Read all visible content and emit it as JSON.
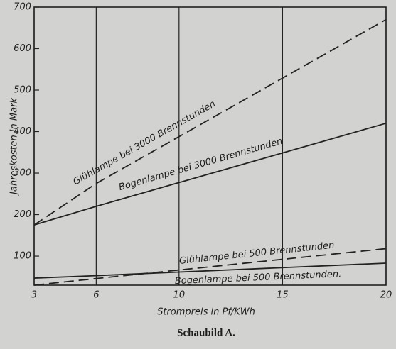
{
  "chart_data": {
    "type": "line",
    "caption": "Schaubild A.",
    "x_label": "Strompreis in Pf/KWh",
    "y_label": "Jahreskosten in Mark",
    "x": [
      3,
      6,
      20
    ],
    "series": [
      {
        "name": "Glühlampe bei 3000 Brennstunden",
        "color": "#222222",
        "dashed": true,
        "values": [
          175,
          275,
          670
        ]
      },
      {
        "name": "Bogenlampe bei 3000 Brennstunden",
        "color": "#222222",
        "dashed": false,
        "values": [
          175,
          220,
          420
        ]
      },
      {
        "name": "Glühlampe bei 500 Brennstunden",
        "color": "#222222",
        "dashed": true,
        "values": [
          30,
          46,
          118
        ]
      },
      {
        "name": "Bogenlampe bei 500 Brennstunden.",
        "color": "#222222",
        "dashed": false,
        "values": [
          47,
          53,
          83
        ]
      }
    ],
    "xlim": [
      3,
      20
    ],
    "xticks": [
      3,
      6,
      10,
      15,
      20
    ],
    "ylim": [
      30,
      700
    ],
    "yticks": [
      100,
      200,
      300,
      400,
      500,
      600,
      700
    ],
    "grid": "x"
  }
}
